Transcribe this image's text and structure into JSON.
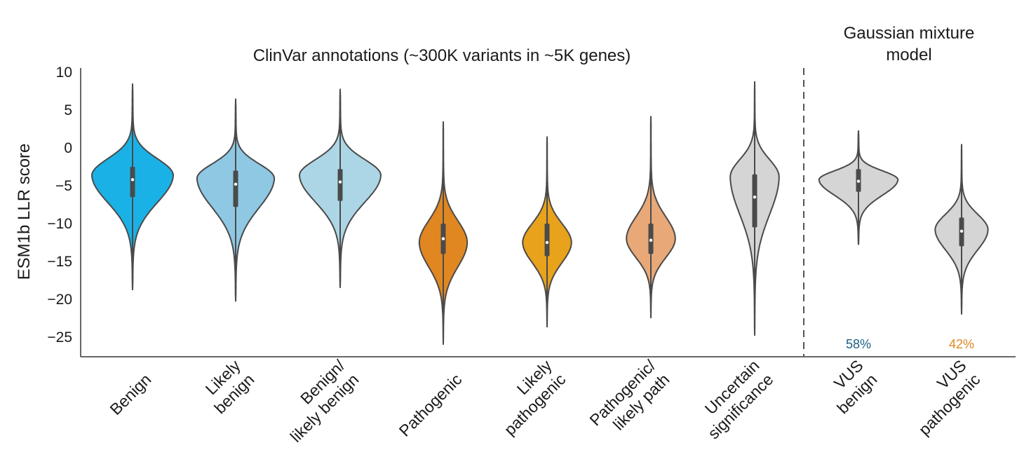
{
  "chart_data": {
    "type": "violin",
    "title": "ClinVar annotations (~300K variants in ~5K genes)",
    "right_title": [
      "Gaussian mixture",
      "model"
    ],
    "ylabel": "ESM1b LLR score",
    "xlabel": "",
    "ylim": [
      -28,
      10.5
    ],
    "yticks": [
      10,
      5,
      0,
      -5,
      -10,
      -15,
      -20,
      -25
    ],
    "ytick_labels": [
      "10",
      "5",
      "0",
      "−5",
      "−10",
      "−15",
      "−20",
      "−25"
    ],
    "divider_after_category": "Uncertain significance",
    "categories": [
      {
        "name": "Benign",
        "label_lines": [
          "Benign"
        ],
        "color": "#1ab2e6",
        "min": -18.8,
        "max": 8.5,
        "q1": -6.5,
        "q3": -2.5,
        "median": -4.2,
        "mode": -3.6,
        "width": 1.0
      },
      {
        "name": "Likely benign",
        "label_lines": [
          "Likely",
          "benign"
        ],
        "color": "#8ec8e3",
        "min": -20.3,
        "max": 6.5,
        "q1": -7.8,
        "q3": -3.0,
        "median": -4.8,
        "mode": -4.0,
        "width": 0.95
      },
      {
        "name": "Benign/likely benign",
        "label_lines": [
          "Benign/",
          "likely benign"
        ],
        "color": "#acd6e6",
        "min": -18.5,
        "max": 7.8,
        "q1": -7.0,
        "q3": -2.8,
        "median": -4.5,
        "mode": -3.6,
        "width": 1.0
      },
      {
        "name": "Pathogenic",
        "label_lines": [
          "Pathogenic"
        ],
        "color": "#e08721",
        "min": -26.0,
        "max": 3.5,
        "q1": -14.0,
        "q3": -10.0,
        "median": -12.0,
        "mode": -12.5,
        "width": 0.59
      },
      {
        "name": "Likely pathogenic",
        "label_lines": [
          "Likely",
          "pathogenic"
        ],
        "color": "#e8a21c",
        "min": -23.7,
        "max": 1.5,
        "q1": -14.3,
        "q3": -10.0,
        "median": -12.5,
        "mode": -12.5,
        "width": 0.6
      },
      {
        "name": "Pathogenic/likely path",
        "label_lines": [
          "Pathogenic/",
          "likely path"
        ],
        "color": "#e8a878",
        "min": -22.5,
        "max": 4.2,
        "q1": -14.0,
        "q3": -10.0,
        "median": -12.2,
        "mode": -12.0,
        "width": 0.6
      },
      {
        "name": "Uncertain significance",
        "label_lines": [
          "Uncertain",
          "significance"
        ],
        "color": "#d5d5d5",
        "min": -24.8,
        "max": 8.8,
        "q1": -10.5,
        "q3": -3.5,
        "median": -6.5,
        "mode": -3.8,
        "width": 0.6
      },
      {
        "name": "VUS benign",
        "label_lines": [
          "VUS",
          "benign"
        ],
        "color": "#d5d5d5",
        "min": -12.8,
        "max": 2.3,
        "q1": -5.8,
        "q3": -2.8,
        "median": -4.4,
        "mode": -4.2,
        "width": 0.97,
        "percent": "58%",
        "percent_color": "#1c5f87"
      },
      {
        "name": "VUS pathogenic",
        "label_lines": [
          "VUS",
          "pathogenic"
        ],
        "color": "#d5d5d5",
        "min": -22.0,
        "max": 0.5,
        "q1": -13.0,
        "q3": -9.2,
        "median": -11.0,
        "mode": -10.8,
        "width": 0.65,
        "percent": "42%",
        "percent_color": "#e08721"
      }
    ]
  }
}
